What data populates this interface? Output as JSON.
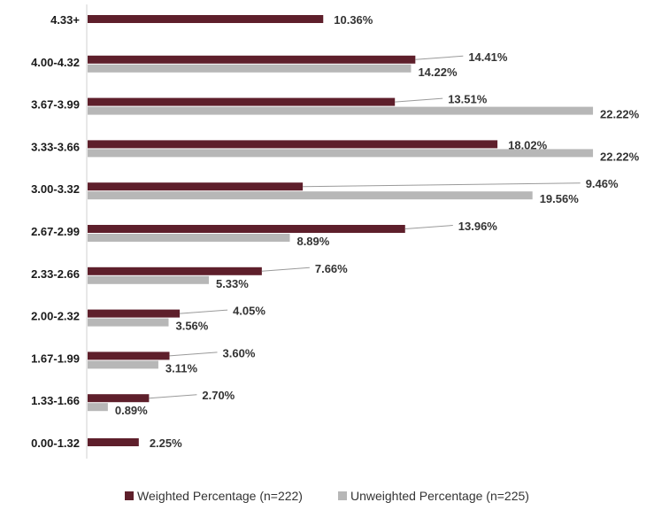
{
  "chart_data": {
    "type": "bar",
    "orientation": "horizontal",
    "categories": [
      "4.33+",
      "4.00-4.32",
      "3.67-3.99",
      "3.33-3.66",
      "3.00-3.32",
      "2.67-2.99",
      "2.33-2.66",
      "2.00-2.32",
      "1.67-1.99",
      "1.33-1.66",
      "0.00-1.32"
    ],
    "series": [
      {
        "name": "Weighted Percentage (n=222)",
        "color": "#5e1f2b",
        "values": [
          10.36,
          14.41,
          13.51,
          18.02,
          9.46,
          13.96,
          7.66,
          4.05,
          3.6,
          2.7,
          2.25
        ],
        "labels": [
          "10.36%",
          "14.41%",
          "13.51%",
          "18.02%",
          "9.46%",
          "13.96%",
          "7.66%",
          "4.05%",
          "3.60%",
          "2.70%",
          "2.25%"
        ]
      },
      {
        "name": "Unweighted Percentage (n=225)",
        "color": "#b7b7b7",
        "values": [
          null,
          14.22,
          22.22,
          22.22,
          19.56,
          8.89,
          5.33,
          3.56,
          3.11,
          0.89,
          null
        ],
        "labels": [
          null,
          "14.22%",
          "22.22%",
          "22.22%",
          "19.56%",
          "8.89%",
          "5.33%",
          "3.56%",
          "3.11%",
          "0.89%",
          null
        ]
      }
    ],
    "xlim": [
      0,
      25
    ],
    "grid": false,
    "legend_position": "bottom"
  }
}
